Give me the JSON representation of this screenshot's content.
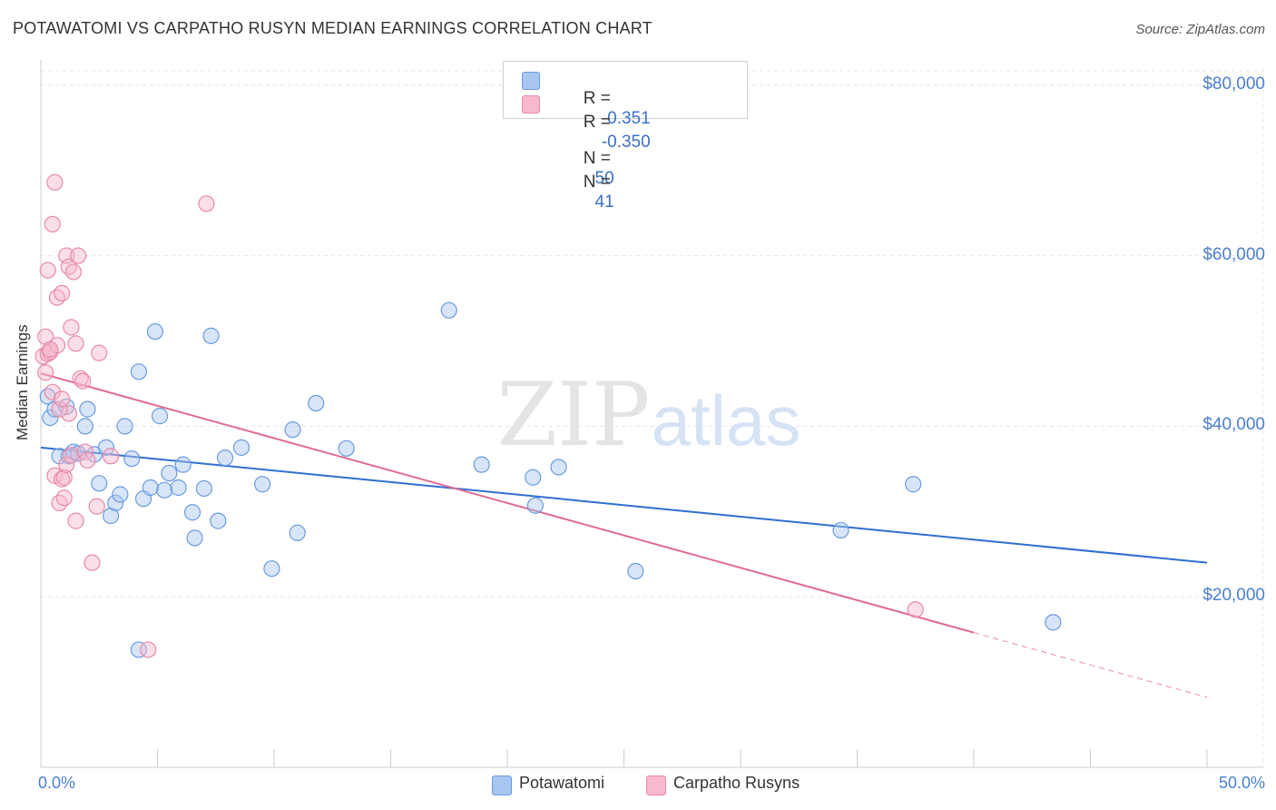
{
  "title": "POTAWATOMI VS CARPATHO RUSYN MEDIAN EARNINGS CORRELATION CHART",
  "source": "Source: ZipAtlas.com",
  "watermark": {
    "zip": "ZIP",
    "atlas": "atlas"
  },
  "legend": {
    "r_label": "R =",
    "n_label": "N =",
    "rows": [
      {
        "name": "Potawatomi",
        "r": "-0.351",
        "n": "50",
        "color": "#a9c6f0",
        "stroke": "#6a9be0"
      },
      {
        "name": "Carpatho Rusyns",
        "r": "-0.350",
        "n": "41",
        "color": "#f7b9cb",
        "stroke": "#e88aa8"
      }
    ]
  },
  "chart_data": {
    "type": "scatter",
    "title": "POTAWATOMI VS CARPATHO RUSYN MEDIAN EARNINGS CORRELATION CHART",
    "xlabel": "",
    "ylabel": "Median Earnings",
    "xlim": [
      0,
      50
    ],
    "ylim": [
      0,
      82000
    ],
    "x_tick_labels": {
      "min": "0.0%",
      "max": "50.0%"
    },
    "y_ticks": [
      {
        "value": 20000,
        "label": "$20,000"
      },
      {
        "value": 40000,
        "label": "$40,000"
      },
      {
        "value": 60000,
        "label": "$60,000"
      },
      {
        "value": 80000,
        "label": "$80,000"
      }
    ],
    "grid": true,
    "series": [
      {
        "name": "Potawatomi",
        "color": "#6a9be0",
        "fill": "#a9c6f0",
        "trend": {
          "x0": 0,
          "y0": 37500,
          "x1": 50,
          "y1": 24000
        },
        "points": [
          [
            0.3,
            43500
          ],
          [
            0.4,
            41000
          ],
          [
            0.6,
            42000
          ],
          [
            0.8,
            36500
          ],
          [
            1.1,
            42300
          ],
          [
            1.2,
            36500
          ],
          [
            1.4,
            37000
          ],
          [
            1.6,
            36800
          ],
          [
            1.9,
            40000
          ],
          [
            2.0,
            42000
          ],
          [
            2.3,
            36700
          ],
          [
            2.5,
            33300
          ],
          [
            2.8,
            37500
          ],
          [
            3.0,
            29500
          ],
          [
            3.2,
            31000
          ],
          [
            3.4,
            32000
          ],
          [
            3.6,
            40000
          ],
          [
            3.9,
            36200
          ],
          [
            4.2,
            46400
          ],
          [
            4.4,
            31500
          ],
          [
            4.7,
            32800
          ],
          [
            4.9,
            51100
          ],
          [
            5.1,
            41200
          ],
          [
            5.3,
            32500
          ],
          [
            5.5,
            34500
          ],
          [
            5.9,
            32800
          ],
          [
            6.1,
            35500
          ],
          [
            6.5,
            29900
          ],
          [
            6.6,
            26900
          ],
          [
            7.0,
            32700
          ],
          [
            7.3,
            50600
          ],
          [
            7.6,
            28900
          ],
          [
            7.9,
            36300
          ],
          [
            8.6,
            37500
          ],
          [
            9.5,
            33200
          ],
          [
            9.9,
            23300
          ],
          [
            10.8,
            39600
          ],
          [
            11.0,
            27500
          ],
          [
            11.8,
            42700
          ],
          [
            13.1,
            37400
          ],
          [
            17.5,
            53600
          ],
          [
            18.9,
            35500
          ],
          [
            21.1,
            34000
          ],
          [
            21.2,
            30700
          ],
          [
            22.2,
            35200
          ],
          [
            25.5,
            23000
          ],
          [
            34.3,
            27800
          ],
          [
            37.4,
            33200
          ],
          [
            43.4,
            17000
          ],
          [
            4.2,
            13800
          ]
        ]
      },
      {
        "name": "Carpatho Rusyns",
        "color": "#e88aa8",
        "fill": "#f7b9cb",
        "trend": {
          "x0": 0,
          "y0": 46200,
          "x1": 40,
          "y1": 15800,
          "dash_to": {
            "x": 50,
            "y": 8200
          }
        },
        "points": [
          [
            0.1,
            48200
          ],
          [
            0.2,
            50500
          ],
          [
            0.2,
            46300
          ],
          [
            0.3,
            48500
          ],
          [
            0.3,
            58300
          ],
          [
            0.4,
            48700
          ],
          [
            0.5,
            63700
          ],
          [
            0.5,
            44000
          ],
          [
            0.6,
            68600
          ],
          [
            0.6,
            34200
          ],
          [
            0.7,
            49500
          ],
          [
            0.7,
            55100
          ],
          [
            0.8,
            31000
          ],
          [
            0.9,
            55600
          ],
          [
            0.9,
            33800
          ],
          [
            1.0,
            34000
          ],
          [
            1.0,
            31600
          ],
          [
            1.1,
            60000
          ],
          [
            1.1,
            35500
          ],
          [
            1.2,
            58700
          ],
          [
            1.2,
            41500
          ],
          [
            1.3,
            51600
          ],
          [
            1.3,
            36600
          ],
          [
            1.4,
            58100
          ],
          [
            1.5,
            28900
          ],
          [
            1.6,
            60000
          ],
          [
            1.7,
            45600
          ],
          [
            1.8,
            45300
          ],
          [
            1.9,
            37000
          ],
          [
            2.0,
            36000
          ],
          [
            2.2,
            24000
          ],
          [
            2.4,
            30600
          ],
          [
            2.5,
            48600
          ],
          [
            0.4,
            49000
          ],
          [
            0.8,
            42000
          ],
          [
            1.5,
            49700
          ],
          [
            3.0,
            36500
          ],
          [
            4.6,
            13800
          ],
          [
            7.1,
            66100
          ],
          [
            37.5,
            18500
          ],
          [
            0.9,
            43200
          ]
        ]
      }
    ]
  }
}
